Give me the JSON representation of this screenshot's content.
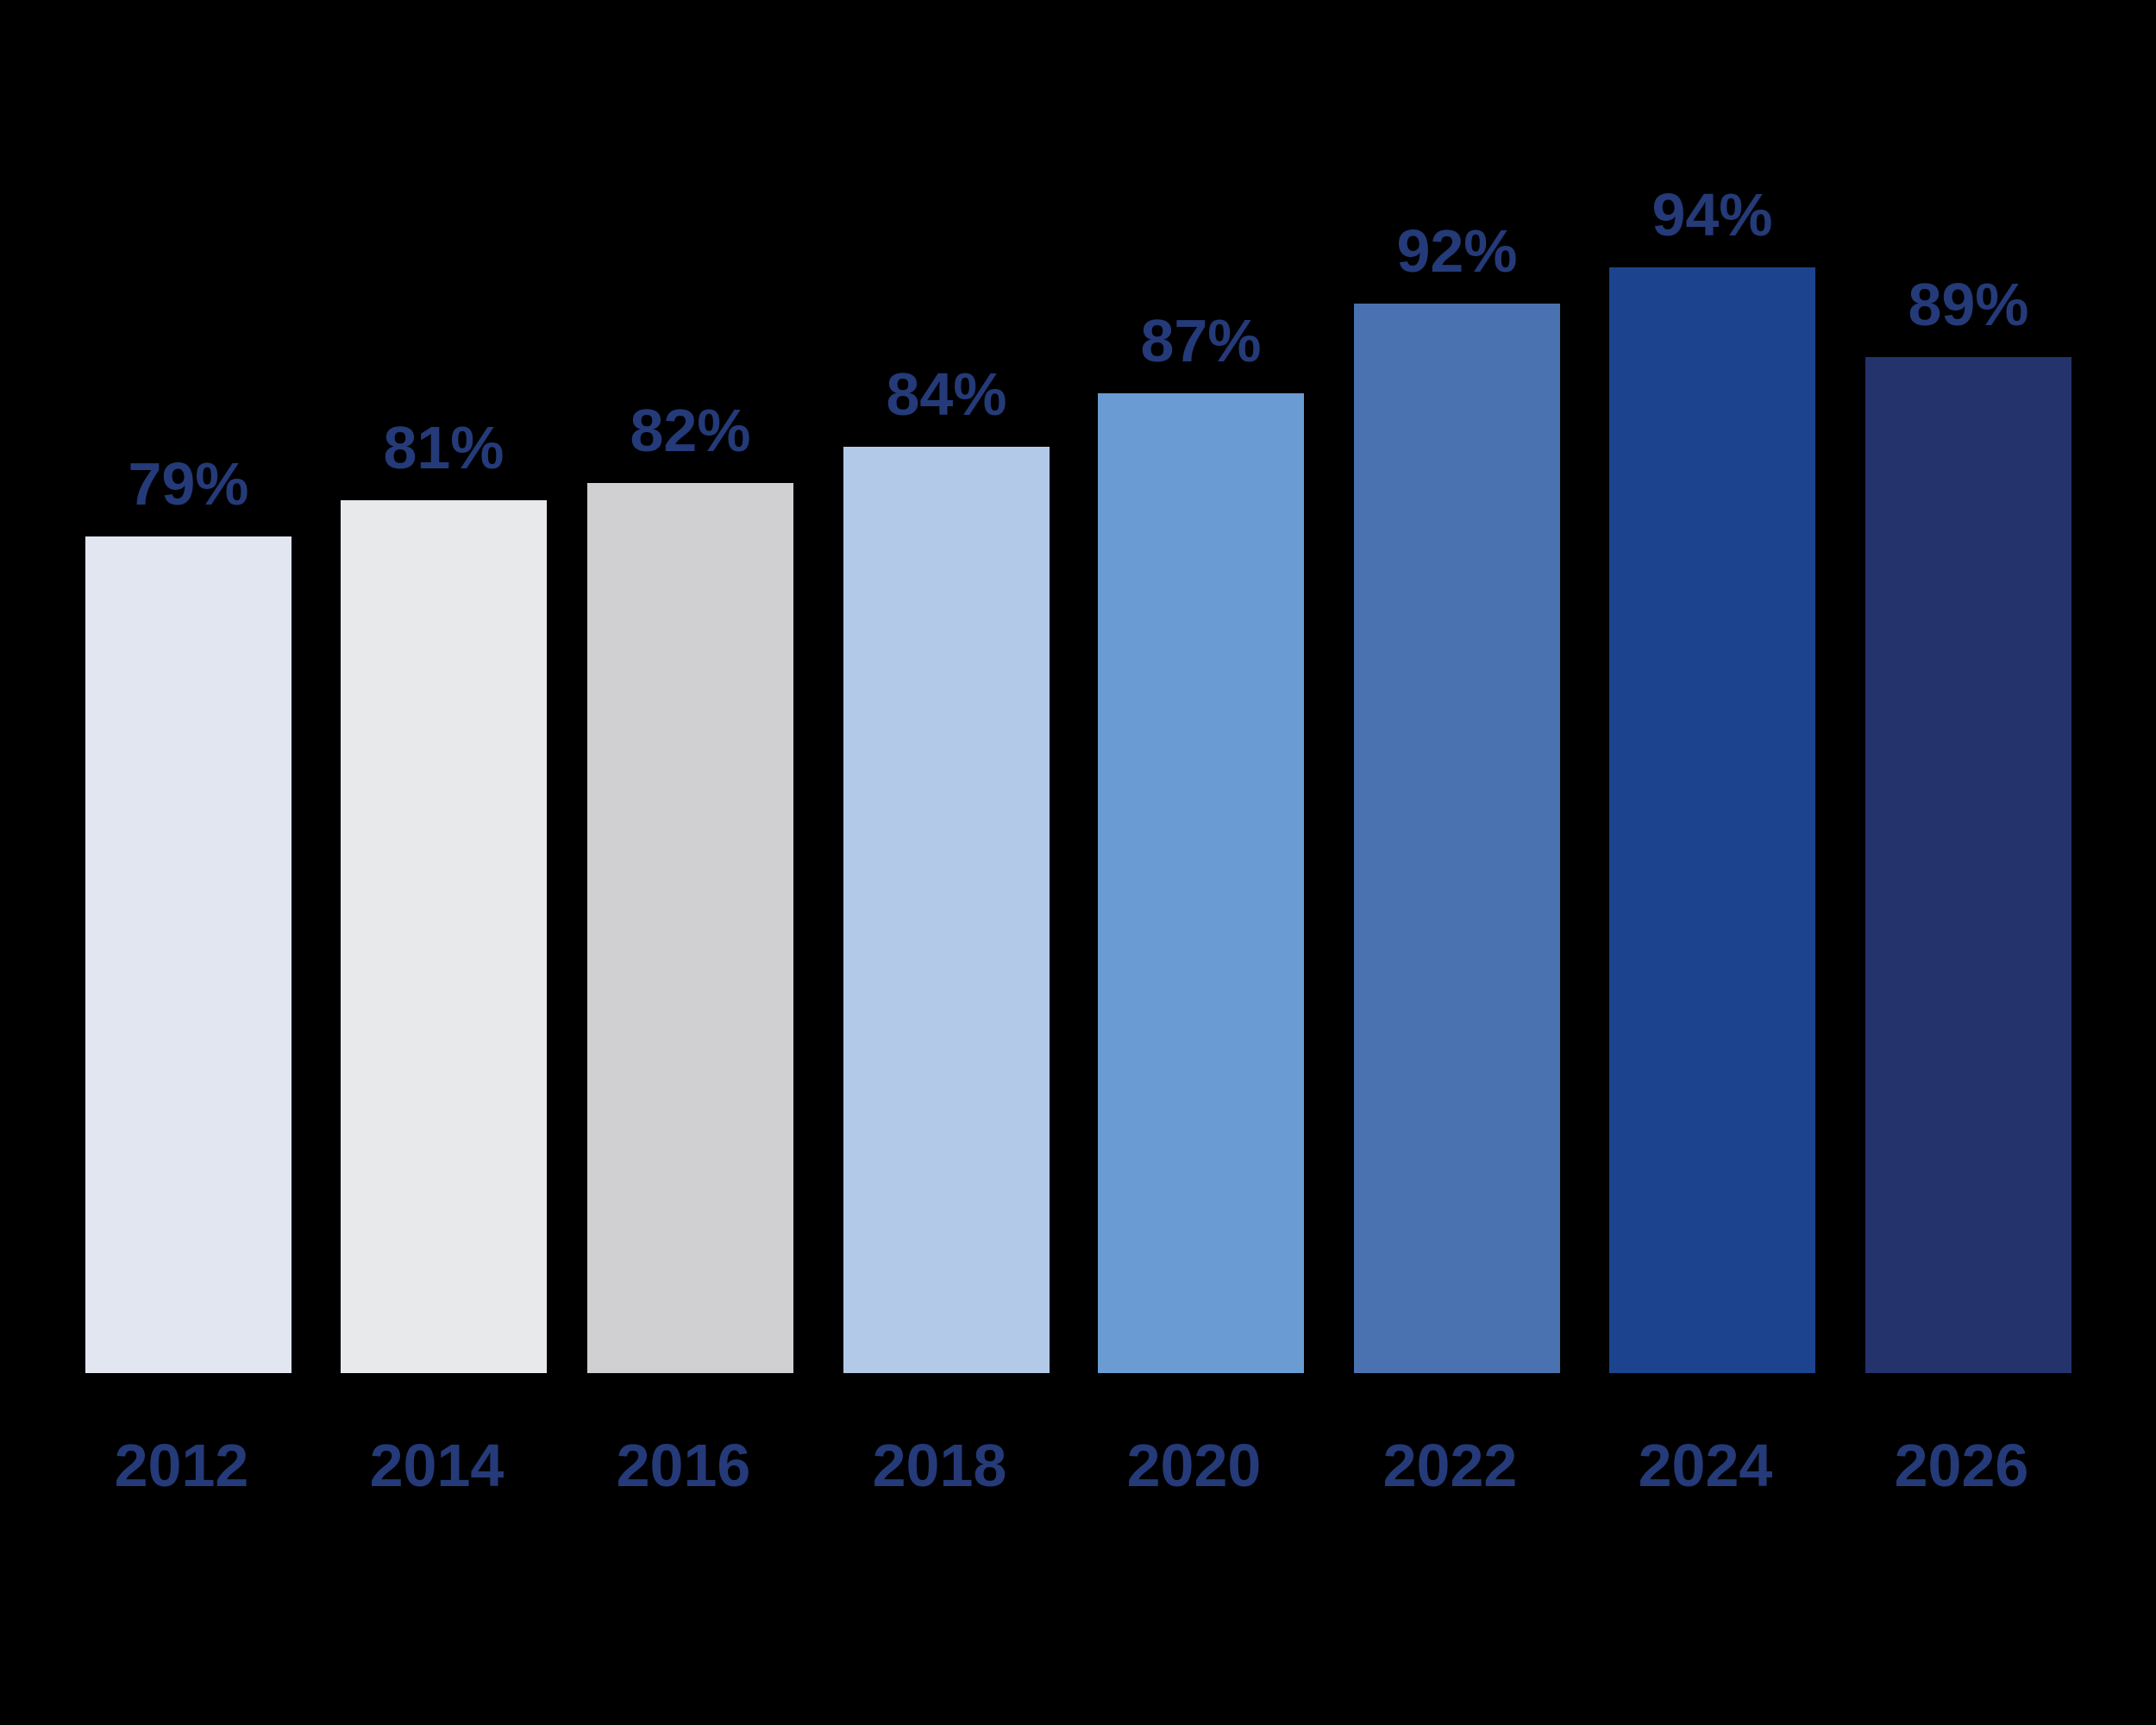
{
  "chart_data": {
    "type": "bar",
    "title": "",
    "xlabel": "",
    "ylabel": "",
    "categories": [
      "2012",
      "2014",
      "2016",
      "2018",
      "2020",
      "2022",
      "2024",
      "2026"
    ],
    "values": [
      79,
      81,
      82,
      84,
      87,
      92,
      94,
      89
    ],
    "labels": [
      "79%",
      "81%",
      "82%",
      "84%",
      "87%",
      "92%",
      "94%",
      "89%"
    ],
    "colors": [
      "#e1e6f0",
      "#e8e9eb",
      "#d0d0d2",
      "#b3c9e8",
      "#6a9bd3",
      "#4a72b0",
      "#1c448e",
      "#24336c"
    ],
    "grid": false,
    "legend": null
  }
}
